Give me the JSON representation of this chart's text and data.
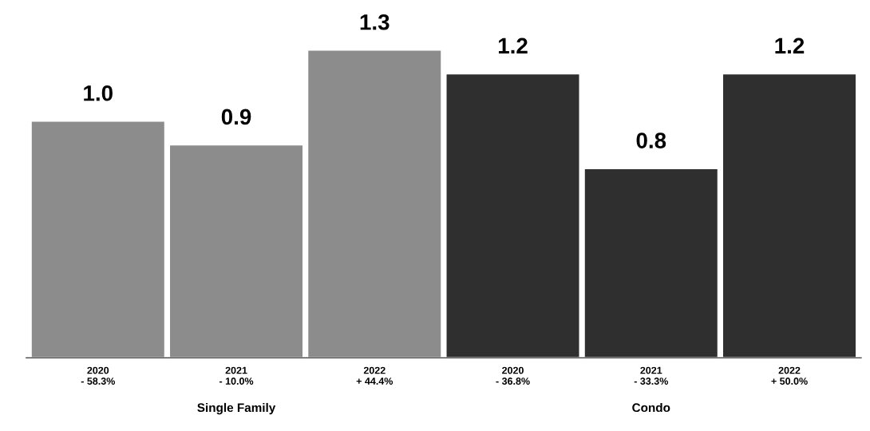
{
  "chart_data": {
    "type": "bar",
    "categories": [
      "2020\n- 58.3%",
      "2021\n- 10.0%",
      "2022\n+ 44.4%",
      "2020\n- 36.8%",
      "2021\n- 33.3%",
      "2022\n+ 50.0%"
    ],
    "values": [
      1.0,
      0.9,
      1.3,
      1.2,
      0.8,
      1.2
    ],
    "colors": [
      "#8c8c8c",
      "#8c8c8c",
      "#8c8c8c",
      "#2f2f2f",
      "#2f2f2f",
      "#2f2f2f"
    ],
    "value_labels": [
      "1.0",
      "0.9",
      "1.3",
      "1.2",
      "0.8",
      "1.2"
    ],
    "annotations": [
      "Single Family",
      "Condo"
    ],
    "grid": false,
    "legend": false,
    "tick_labels": "x"
  }
}
